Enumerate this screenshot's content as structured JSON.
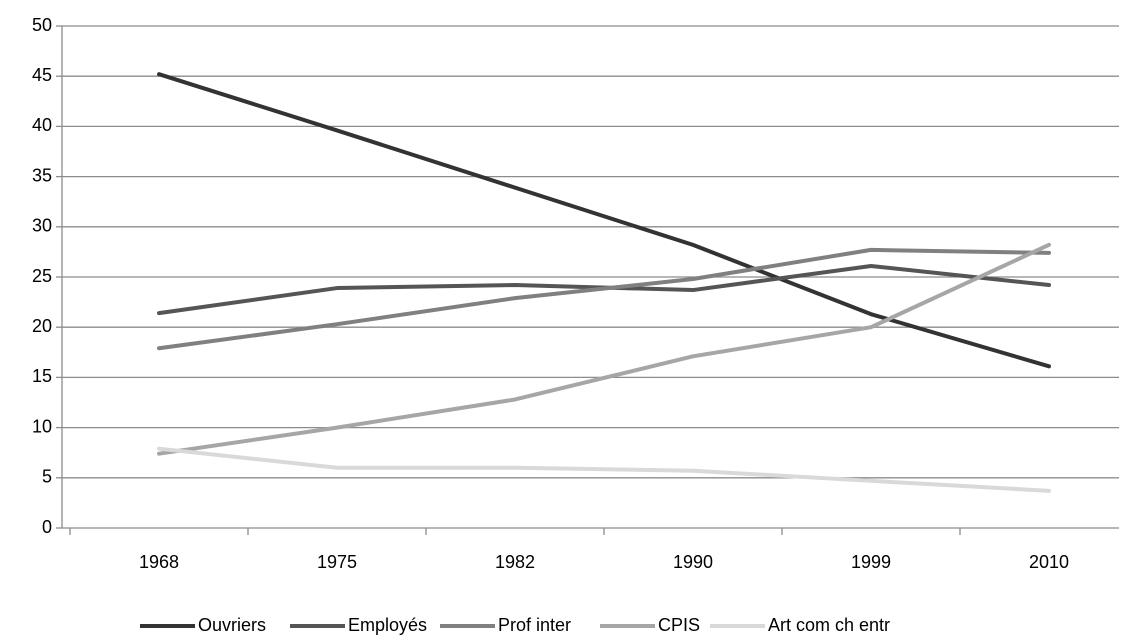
{
  "chart_data": {
    "type": "line",
    "categories": [
      "1968",
      "1975",
      "1982",
      "1990",
      "1999",
      "2010"
    ],
    "series": [
      {
        "name": "Ouvriers",
        "color": "#333333",
        "values": [
          45.2,
          39.6,
          33.9,
          28.2,
          21.3,
          16.1
        ]
      },
      {
        "name": "Employés",
        "color": "#555555",
        "values": [
          21.4,
          23.9,
          24.2,
          23.7,
          26.1,
          24.2
        ]
      },
      {
        "name": "Prof inter",
        "color": "#808080",
        "values": [
          17.9,
          20.3,
          22.9,
          24.8,
          27.7,
          27.4
        ]
      },
      {
        "name": "CPIS",
        "color": "#a6a6a6",
        "values": [
          7.4,
          10.0,
          12.8,
          17.1,
          20.0,
          28.2
        ]
      },
      {
        "name": "Art com ch entr",
        "color": "#d9d9d9",
        "values": [
          7.9,
          6.0,
          6.0,
          5.7,
          4.7,
          3.7
        ]
      }
    ],
    "ylim": [
      0,
      50
    ],
    "yticks": [
      0,
      5,
      10,
      15,
      20,
      25,
      30,
      35,
      40,
      45,
      50
    ],
    "grid": true,
    "legend": "bottom"
  }
}
